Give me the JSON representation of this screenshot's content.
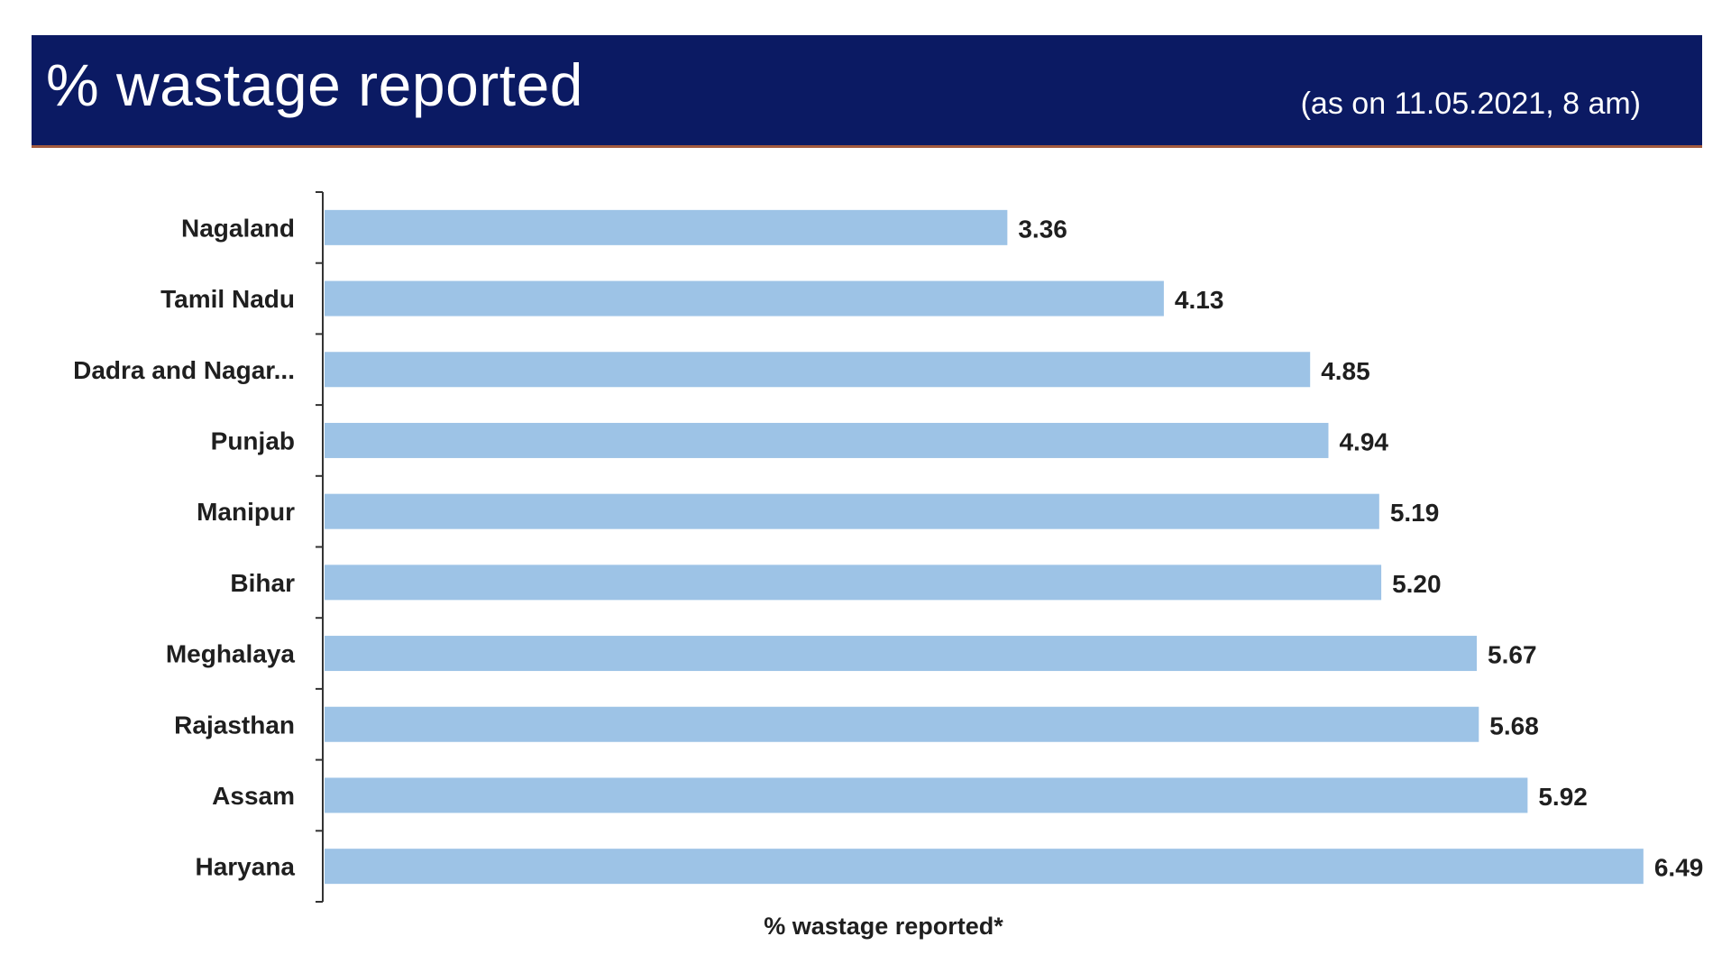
{
  "header": {
    "title": "% wastage reported",
    "date": "(as on 11.05.2021, 8 am)"
  },
  "colors": {
    "banner": "#0b1a63",
    "bar": "#9dc3e6",
    "text": "#1f1f1f"
  },
  "chart_data": {
    "type": "bar",
    "orientation": "horizontal",
    "title": "% wastage reported",
    "xlabel": "% wastage reported*",
    "ylabel": "",
    "grid": false,
    "legend": "none",
    "xlim": [
      0,
      7
    ],
    "categories": [
      "Nagaland",
      "Tamil Nadu",
      "Dadra and Nagar...",
      "Punjab",
      "Manipur",
      "Bihar",
      "Meghalaya",
      "Rajasthan",
      "Assam",
      "Haryana"
    ],
    "values": [
      3.36,
      4.13,
      4.85,
      4.94,
      5.19,
      5.2,
      5.67,
      5.68,
      5.92,
      6.49
    ],
    "value_labels": [
      "3.36",
      "4.13",
      "4.85",
      "4.94",
      "5.19",
      "5.20",
      "5.67",
      "5.68",
      "5.92",
      "6.49"
    ]
  }
}
